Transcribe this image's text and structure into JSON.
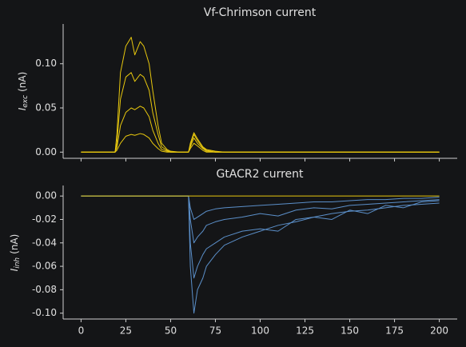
{
  "chart_data": [
    {
      "type": "line",
      "title": "Vf-Chrimson current",
      "ylabel": {
        "symbol": "I",
        "subscript": "exc",
        "unit": "(nA)"
      },
      "x": [
        0,
        10,
        19,
        20,
        22,
        25,
        28,
        30,
        33,
        35,
        38,
        40,
        43,
        45,
        48,
        50,
        55,
        59,
        60,
        61,
        63,
        65,
        68,
        70,
        75,
        80,
        90,
        100,
        110,
        120,
        130,
        140,
        150,
        160,
        170,
        180,
        190,
        200
      ],
      "series": [
        {
          "color": "#e8c80e",
          "values": [
            0,
            0,
            0,
            0.02,
            0.09,
            0.12,
            0.13,
            0.11,
            0.125,
            0.12,
            0.1,
            0.07,
            0.03,
            0.01,
            0.003,
            0.001,
            0,
            0,
            0,
            0.01,
            0.022,
            0.015,
            0.006,
            0.003,
            0.001,
            0,
            0,
            0,
            0,
            0,
            0,
            0,
            0,
            0,
            0,
            0,
            0,
            0
          ]
        },
        {
          "color": "#e8c80e",
          "values": [
            0,
            0,
            0,
            0.01,
            0.06,
            0.085,
            0.09,
            0.08,
            0.088,
            0.085,
            0.07,
            0.045,
            0.02,
            0.006,
            0.002,
            0,
            0,
            0,
            0,
            0.008,
            0.02,
            0.013,
            0.005,
            0.002,
            0,
            0,
            0,
            0,
            0,
            0,
            0,
            0,
            0,
            0,
            0,
            0,
            0,
            0
          ]
        },
        {
          "color": "#e8c80e",
          "values": [
            0,
            0,
            0,
            0.005,
            0.03,
            0.045,
            0.05,
            0.048,
            0.052,
            0.05,
            0.04,
            0.025,
            0.01,
            0.003,
            0.001,
            0,
            0,
            0,
            0,
            0.006,
            0.016,
            0.01,
            0.004,
            0.001,
            0,
            0,
            0,
            0,
            0,
            0,
            0,
            0,
            0,
            0,
            0,
            0,
            0,
            0
          ]
        },
        {
          "color": "#e8c80e",
          "values": [
            0,
            0,
            0,
            0.002,
            0.01,
            0.018,
            0.02,
            0.019,
            0.021,
            0.02,
            0.016,
            0.01,
            0.004,
            0.001,
            0,
            0,
            0,
            0,
            0,
            0.004,
            0.01,
            0.007,
            0.002,
            0,
            0,
            0,
            0,
            0,
            0,
            0,
            0,
            0,
            0,
            0,
            0,
            0,
            0,
            0
          ]
        }
      ],
      "xlim": [
        -10,
        210
      ],
      "ylim": [
        -0.007,
        0.145
      ],
      "xticks": [
        0,
        25,
        50,
        75,
        100,
        125,
        150,
        175,
        200
      ],
      "yticks": [
        {
          "value": 0,
          "label": "0.00"
        },
        {
          "value": 0.05,
          "label": "0.05"
        },
        {
          "value": 0.1,
          "label": "0.10"
        }
      ]
    },
    {
      "type": "line",
      "title": "GtACR2 current",
      "ylabel": {
        "symbol": "I",
        "subscript": "inh",
        "unit": "(nA)"
      },
      "x": [
        0,
        10,
        19,
        20,
        22,
        25,
        28,
        30,
        33,
        35,
        38,
        40,
        43,
        45,
        48,
        50,
        55,
        59,
        60,
        61,
        63,
        65,
        68,
        70,
        75,
        80,
        90,
        100,
        110,
        120,
        130,
        140,
        150,
        160,
        170,
        180,
        190,
        200
      ],
      "series": [
        {
          "color": "#5b8fc9",
          "values": [
            0,
            0,
            0,
            0,
            0,
            0,
            0,
            0,
            0,
            0,
            0,
            0,
            0,
            0,
            0,
            0,
            0,
            0,
            0,
            -0.06,
            -0.1,
            -0.08,
            -0.07,
            -0.06,
            -0.05,
            -0.042,
            -0.035,
            -0.03,
            -0.025,
            -0.022,
            -0.018,
            -0.015,
            -0.013,
            -0.012,
            -0.01,
            -0.008,
            -0.007,
            -0.006
          ]
        },
        {
          "color": "#5b8fc9",
          "values": [
            0,
            0,
            0,
            0,
            0,
            0,
            0,
            0,
            0,
            0,
            0,
            0,
            0,
            0,
            0,
            0,
            0,
            0,
            0,
            -0.04,
            -0.07,
            -0.06,
            -0.05,
            -0.045,
            -0.04,
            -0.035,
            -0.03,
            -0.028,
            -0.03,
            -0.02,
            -0.018,
            -0.02,
            -0.012,
            -0.015,
            -0.008,
            -0.01,
            -0.005,
            -0.004
          ]
        },
        {
          "color": "#5b8fc9",
          "values": [
            0,
            0,
            0,
            0,
            0,
            0,
            0,
            0,
            0,
            0,
            0,
            0,
            0,
            0,
            0,
            0,
            0,
            0,
            0,
            -0.02,
            -0.04,
            -0.035,
            -0.03,
            -0.025,
            -0.022,
            -0.02,
            -0.018,
            -0.015,
            -0.017,
            -0.012,
            -0.01,
            -0.011,
            -0.008,
            -0.007,
            -0.006,
            -0.005,
            -0.004,
            -0.003
          ]
        },
        {
          "color": "#5b8fc9",
          "values": [
            0,
            0,
            0,
            0,
            0,
            0,
            0,
            0,
            0,
            0,
            0,
            0,
            0,
            0,
            0,
            0,
            0,
            0,
            0,
            -0.01,
            -0.02,
            -0.018,
            -0.015,
            -0.013,
            -0.011,
            -0.01,
            -0.009,
            -0.008,
            -0.007,
            -0.006,
            -0.005,
            -0.005,
            -0.004,
            -0.003,
            -0.003,
            -0.002,
            -0.002,
            -0.001
          ]
        },
        {
          "color": "#e8c80e",
          "values": [
            0,
            0,
            0,
            0,
            0,
            0,
            0,
            0,
            0,
            0,
            0,
            0,
            0,
            0,
            0,
            0,
            0,
            0,
            0,
            0,
            0,
            0,
            0,
            0,
            0,
            0,
            0,
            0,
            0,
            0,
            0,
            0,
            0,
            0,
            0,
            0,
            0,
            0
          ]
        }
      ],
      "xlim": [
        -10,
        210
      ],
      "ylim": [
        -0.105,
        0.009
      ],
      "xticks": [
        0,
        25,
        50,
        75,
        100,
        125,
        150,
        175,
        200
      ],
      "yticks": [
        {
          "value": 0,
          "label": "0.00"
        },
        {
          "value": -0.02,
          "label": "-0.02"
        },
        {
          "value": -0.04,
          "label": "-0.04"
        },
        {
          "value": -0.06,
          "label": "-0.06"
        },
        {
          "value": -0.08,
          "label": "-0.08"
        },
        {
          "value": -0.1,
          "label": "-0.10"
        }
      ]
    }
  ]
}
